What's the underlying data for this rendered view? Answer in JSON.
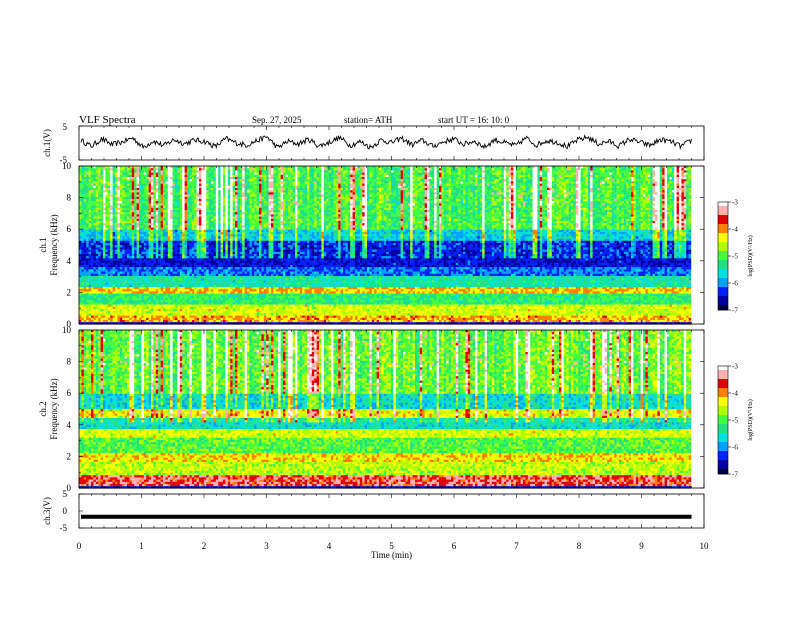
{
  "header": {
    "title": "VLF  Spectra",
    "date": "Sep. 27, 2025",
    "station": "station= ATH",
    "start": "start  UT  =    16: 10: 0"
  },
  "colors": {
    "spectrogram_scale": [
      "#000040",
      "#0000a0",
      "#0020ff",
      "#00a0ff",
      "#00e0e0",
      "#20e080",
      "#40ff40",
      "#b0ff00",
      "#ffff00",
      "#ff8000",
      "#e00000",
      "#ffb0b0",
      "#ffffff"
    ],
    "trace": "#000000"
  },
  "chart_data": [
    {
      "type": "line",
      "ylabel": "ch.1(V)",
      "ylim": [
        -5,
        5
      ],
      "yticks": [
        "5",
        "-5"
      ],
      "xlim": [
        0,
        10
      ],
      "x_end": 9.8,
      "description_of_values": "noisy waveform between about -2 and 2 V",
      "series": [
        {
          "values": [
            0.8,
            -1.0,
            1.2,
            -0.5,
            0.3,
            1.5,
            -1.2,
            0.6,
            -0.8,
            1.0,
            -0.2,
            0.9,
            0.4,
            -1.1,
            1.3,
            0.0,
            -0.6,
            0.7,
            1.8,
            -1.4,
            0.5,
            -0.3,
            1.1,
            -0.9,
            0.2,
            1.6,
            -0.7,
            0.4,
            -1.3,
            0.9,
            0.1,
            1.4,
            -0.5,
            0.8,
            -1.0,
            0.3,
            1.2,
            -0.4,
            0.6,
            -1.2,
            1.0,
            0.0,
            -0.8,
            1.5,
            -0.6,
            0.7,
            0.3,
            -1.1,
            0.9,
            1.7,
            -0.3,
            0.5,
            -0.9,
            1.2,
            0.2,
            -0.7,
            1.0,
            0.4,
            -1.0,
            0.8
          ]
        }
      ]
    },
    {
      "type": "heatmap",
      "ylabel": "ch.1",
      "ylabel2": "Frequency  (kHz)",
      "ylim": [
        0,
        10
      ],
      "yticks": [
        "0",
        "2",
        "4",
        "6",
        "8",
        "10"
      ],
      "xlim": [
        0,
        10
      ],
      "x_end": 9.8,
      "colorbar": {
        "label": "log(PSD)(V²/Hz)",
        "range": [
          -7,
          -3
        ],
        "ticks": [
          "-3",
          "-4",
          "-5",
          "-6",
          "-7"
        ]
      }
    },
    {
      "type": "heatmap",
      "ylabel": "ch.2",
      "ylabel2": "Frequency  (kHz)",
      "ylim": [
        0,
        10
      ],
      "yticks": [
        "0",
        "2",
        "4",
        "6",
        "8",
        "10"
      ],
      "xlim": [
        0,
        10
      ],
      "x_end": 9.8,
      "colorbar": {
        "label": "log(PSD)(V²/Hz)",
        "range": [
          -7,
          -3
        ],
        "ticks": [
          "-3",
          "-4",
          "-5",
          "-6",
          "-7"
        ]
      }
    },
    {
      "type": "line",
      "ylabel": "ch.3(V)",
      "ylim": [
        -5,
        5
      ],
      "yticks": [
        "5",
        "0",
        "-5"
      ],
      "xlim": [
        0,
        10
      ],
      "x_end": 9.8,
      "series": [
        {
          "values": [
            -1.7,
            -1.7
          ]
        }
      ],
      "xlabel": "Time  (min)",
      "xticks": [
        "0",
        "1",
        "2",
        "3",
        "4",
        "5",
        "6",
        "7",
        "8",
        "9",
        "10"
      ]
    }
  ]
}
